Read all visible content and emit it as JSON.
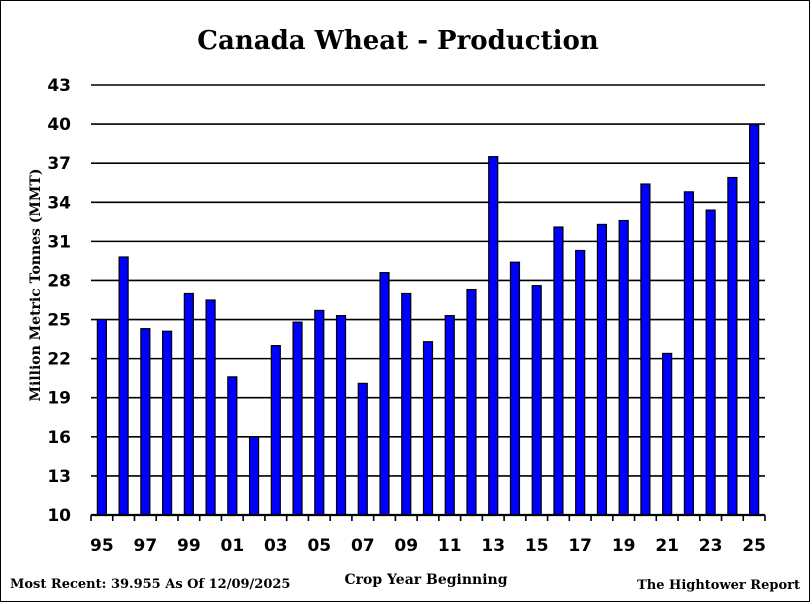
{
  "chart_data": {
    "type": "bar",
    "title": "Canada Wheat - Production",
    "ylabel": "Million Metric Tonnes (MMT)",
    "xlabel": "Crop Year Beginning",
    "ylim": [
      10,
      43
    ],
    "yticks": [
      "10",
      "13",
      "16",
      "19",
      "22",
      "25",
      "28",
      "31",
      "34",
      "37",
      "40",
      "43"
    ],
    "categories": [
      "95",
      "96",
      "97",
      "98",
      "99",
      "00",
      "01",
      "02",
      "03",
      "04",
      "05",
      "06",
      "07",
      "08",
      "09",
      "10",
      "11",
      "12",
      "13",
      "14",
      "15",
      "16",
      "17",
      "18",
      "19",
      "20",
      "21",
      "22",
      "23",
      "24",
      "25"
    ],
    "xtick_labels": [
      "95",
      "97",
      "99",
      "01",
      "03",
      "05",
      "07",
      "09",
      "11",
      "13",
      "15",
      "17",
      "19",
      "21",
      "23",
      "25"
    ],
    "values": [
      25.0,
      29.8,
      24.3,
      24.1,
      27.0,
      26.5,
      20.6,
      16.0,
      23.0,
      24.8,
      25.7,
      25.3,
      20.1,
      28.6,
      27.0,
      23.3,
      25.3,
      27.3,
      37.5,
      29.4,
      27.6,
      32.1,
      30.3,
      32.3,
      32.6,
      35.4,
      22.4,
      34.8,
      33.4,
      35.9,
      39.955
    ],
    "bar_color": "#0000ff",
    "grid": true
  },
  "footer": {
    "most_recent": "Most Recent: 39.955 As Of 12/09/2025",
    "source": "The Hightower Report"
  }
}
